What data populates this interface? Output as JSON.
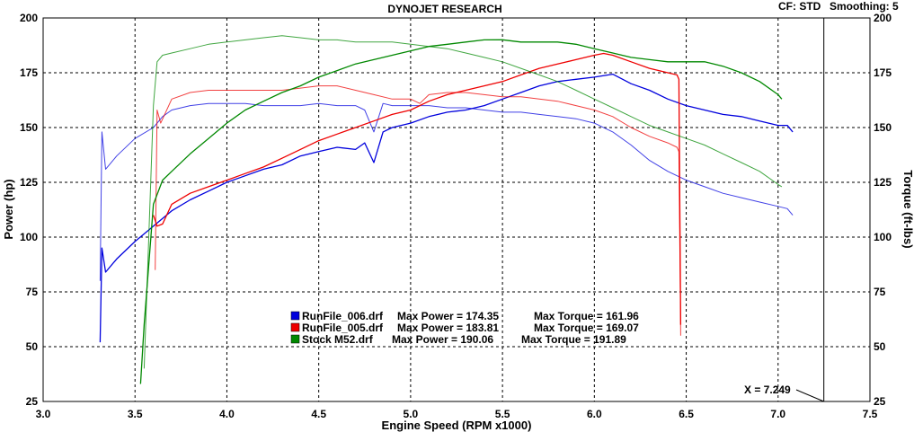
{
  "header": {
    "title": "DYNOJET RESEARCH",
    "cf_label": "CF: STD",
    "smoothing_label": "Smoothing: 5"
  },
  "cursor": {
    "label": "X = 7.249",
    "x": 7.249
  },
  "chart_data": {
    "type": "line",
    "title": "DYNOJET RESEARCH",
    "xlabel": "Engine Speed (RPM x1000)",
    "ylabel": "Power (hp)",
    "y2label": "Torque (ft-lbs)",
    "xlim": [
      3.0,
      7.5
    ],
    "ylim": [
      25,
      200
    ],
    "y2lim": [
      25,
      200
    ],
    "x_ticks": [
      "3.0",
      "3.5",
      "4.0",
      "4.5",
      "5.0",
      "5.5",
      "6.0",
      "6.5",
      "7.0",
      "7.5"
    ],
    "y_ticks": [
      "25",
      "50",
      "75",
      "100",
      "125",
      "150",
      "175",
      "200"
    ],
    "grid": true,
    "legend_position": "bottom-center",
    "series": [
      {
        "name": "RunFile_006.drf",
        "color": "#0000dd",
        "max_power_text": "Max Power = 174.35",
        "max_torque_text": "Max Torque = 161.96",
        "power": [
          [
            3.31,
            52
          ],
          [
            3.32,
            95
          ],
          [
            3.34,
            84
          ],
          [
            3.4,
            90
          ],
          [
            3.5,
            98
          ],
          [
            3.6,
            105
          ],
          [
            3.7,
            112
          ],
          [
            3.8,
            117
          ],
          [
            3.9,
            121
          ],
          [
            4.0,
            125
          ],
          [
            4.1,
            128
          ],
          [
            4.2,
            131
          ],
          [
            4.3,
            133
          ],
          [
            4.4,
            137
          ],
          [
            4.5,
            139
          ],
          [
            4.6,
            141
          ],
          [
            4.7,
            140
          ],
          [
            4.75,
            143
          ],
          [
            4.8,
            134
          ],
          [
            4.85,
            148
          ],
          [
            4.9,
            150
          ],
          [
            5.0,
            152
          ],
          [
            5.1,
            155
          ],
          [
            5.2,
            157
          ],
          [
            5.3,
            158
          ],
          [
            5.4,
            160
          ],
          [
            5.5,
            163
          ],
          [
            5.6,
            166
          ],
          [
            5.7,
            169
          ],
          [
            5.8,
            171
          ],
          [
            5.9,
            172
          ],
          [
            6.0,
            173
          ],
          [
            6.1,
            174.35
          ],
          [
            6.2,
            170
          ],
          [
            6.3,
            167
          ],
          [
            6.4,
            163
          ],
          [
            6.5,
            160
          ],
          [
            6.6,
            158
          ],
          [
            6.7,
            156
          ],
          [
            6.8,
            155
          ],
          [
            6.9,
            153
          ],
          [
            7.0,
            151
          ],
          [
            7.05,
            151
          ],
          [
            7.08,
            148
          ]
        ],
        "torque": [
          [
            3.31,
            80
          ],
          [
            3.32,
            148
          ],
          [
            3.34,
            131
          ],
          [
            3.4,
            137
          ],
          [
            3.5,
            145
          ],
          [
            3.6,
            150
          ],
          [
            3.65,
            155
          ],
          [
            3.7,
            158
          ],
          [
            3.8,
            160
          ],
          [
            3.9,
            161
          ],
          [
            4.0,
            161
          ],
          [
            4.1,
            161
          ],
          [
            4.2,
            160
          ],
          [
            4.3,
            160
          ],
          [
            4.4,
            160
          ],
          [
            4.5,
            161
          ],
          [
            4.6,
            160
          ],
          [
            4.7,
            160
          ],
          [
            4.75,
            158
          ],
          [
            4.8,
            148
          ],
          [
            4.85,
            161
          ],
          [
            4.9,
            160
          ],
          [
            5.0,
            160
          ],
          [
            5.1,
            160
          ],
          [
            5.2,
            159
          ],
          [
            5.3,
            159
          ],
          [
            5.4,
            158
          ],
          [
            5.5,
            157
          ],
          [
            5.6,
            157
          ],
          [
            5.7,
            156
          ],
          [
            5.8,
            155
          ],
          [
            5.9,
            154
          ],
          [
            6.0,
            152
          ],
          [
            6.1,
            148
          ],
          [
            6.2,
            142
          ],
          [
            6.3,
            135
          ],
          [
            6.4,
            130
          ],
          [
            6.5,
            126
          ],
          [
            6.6,
            123
          ],
          [
            6.7,
            120
          ],
          [
            6.8,
            118
          ],
          [
            6.9,
            116
          ],
          [
            7.0,
            114
          ],
          [
            7.05,
            113
          ],
          [
            7.08,
            110
          ]
        ]
      },
      {
        "name": "RunFile_005.drf",
        "color": "#ee0000",
        "max_power_text": "Max Power = 183.81",
        "max_torque_text": "Max Torque = 169.07",
        "power": [
          [
            3.6,
            110
          ],
          [
            3.62,
            105
          ],
          [
            3.65,
            106
          ],
          [
            3.7,
            115
          ],
          [
            3.8,
            120
          ],
          [
            3.9,
            123
          ],
          [
            4.0,
            126
          ],
          [
            4.1,
            129
          ],
          [
            4.2,
            132
          ],
          [
            4.3,
            136
          ],
          [
            4.4,
            140
          ],
          [
            4.5,
            144
          ],
          [
            4.6,
            147
          ],
          [
            4.7,
            150
          ],
          [
            4.8,
            153
          ],
          [
            4.9,
            156
          ],
          [
            5.0,
            158
          ],
          [
            5.1,
            162
          ],
          [
            5.2,
            165
          ],
          [
            5.3,
            167
          ],
          [
            5.4,
            169
          ],
          [
            5.5,
            171
          ],
          [
            5.6,
            174
          ],
          [
            5.7,
            177
          ],
          [
            5.8,
            179
          ],
          [
            5.9,
            181
          ],
          [
            6.0,
            183
          ],
          [
            6.05,
            183.81
          ],
          [
            6.1,
            183
          ],
          [
            6.2,
            180
          ],
          [
            6.3,
            177
          ],
          [
            6.4,
            175
          ],
          [
            6.45,
            174
          ],
          [
            6.46,
            172
          ],
          [
            6.47,
            60
          ]
        ],
        "torque": [
          [
            3.61,
            85
          ],
          [
            3.62,
            158
          ],
          [
            3.64,
            152
          ],
          [
            3.7,
            163
          ],
          [
            3.8,
            166
          ],
          [
            3.9,
            167
          ],
          [
            4.0,
            167
          ],
          [
            4.1,
            167
          ],
          [
            4.2,
            167
          ],
          [
            4.3,
            167
          ],
          [
            4.4,
            168
          ],
          [
            4.5,
            169
          ],
          [
            4.6,
            169
          ],
          [
            4.7,
            167
          ],
          [
            4.8,
            165
          ],
          [
            4.9,
            163
          ],
          [
            5.0,
            163
          ],
          [
            5.05,
            161
          ],
          [
            5.1,
            165
          ],
          [
            5.2,
            166
          ],
          [
            5.3,
            166
          ],
          [
            5.4,
            165
          ],
          [
            5.5,
            164
          ],
          [
            5.6,
            164
          ],
          [
            5.7,
            163
          ],
          [
            5.8,
            162
          ],
          [
            5.9,
            160
          ],
          [
            6.0,
            158
          ],
          [
            6.1,
            155
          ],
          [
            6.2,
            150
          ],
          [
            6.3,
            146
          ],
          [
            6.4,
            143
          ],
          [
            6.45,
            141
          ],
          [
            6.46,
            139
          ],
          [
            6.47,
            55
          ]
        ]
      },
      {
        "name": "Stock M52.drf",
        "color": "#008800",
        "max_power_text": "Max Power = 190.06",
        "max_torque_text": "Max Torque = 191.89",
        "power": [
          [
            3.53,
            33
          ],
          [
            3.55,
            60
          ],
          [
            3.6,
            115
          ],
          [
            3.65,
            126
          ],
          [
            3.7,
            130
          ],
          [
            3.8,
            138
          ],
          [
            3.9,
            145
          ],
          [
            4.0,
            152
          ],
          [
            4.1,
            158
          ],
          [
            4.2,
            162
          ],
          [
            4.3,
            166
          ],
          [
            4.4,
            169
          ],
          [
            4.5,
            173
          ],
          [
            4.6,
            176
          ],
          [
            4.7,
            179
          ],
          [
            4.8,
            181
          ],
          [
            4.9,
            183
          ],
          [
            5.0,
            185
          ],
          [
            5.1,
            187
          ],
          [
            5.2,
            188
          ],
          [
            5.3,
            189
          ],
          [
            5.4,
            190
          ],
          [
            5.5,
            190.06
          ],
          [
            5.6,
            189
          ],
          [
            5.7,
            189
          ],
          [
            5.8,
            189
          ],
          [
            5.9,
            188
          ],
          [
            6.0,
            186
          ],
          [
            6.1,
            184
          ],
          [
            6.2,
            182
          ],
          [
            6.3,
            181
          ],
          [
            6.4,
            180
          ],
          [
            6.5,
            180
          ],
          [
            6.6,
            180
          ],
          [
            6.7,
            178
          ],
          [
            6.8,
            175
          ],
          [
            6.9,
            171
          ],
          [
            7.0,
            165
          ],
          [
            7.02,
            163
          ]
        ],
        "torque": [
          [
            3.55,
            40
          ],
          [
            3.6,
            160
          ],
          [
            3.62,
            180
          ],
          [
            3.65,
            183
          ],
          [
            3.7,
            184
          ],
          [
            3.8,
            186
          ],
          [
            3.9,
            188
          ],
          [
            4.0,
            189
          ],
          [
            4.1,
            190
          ],
          [
            4.2,
            191
          ],
          [
            4.3,
            191.89
          ],
          [
            4.4,
            191
          ],
          [
            4.5,
            190
          ],
          [
            4.6,
            190
          ],
          [
            4.7,
            189
          ],
          [
            4.8,
            189
          ],
          [
            4.9,
            189
          ],
          [
            5.0,
            188
          ],
          [
            5.1,
            187
          ],
          [
            5.2,
            186
          ],
          [
            5.3,
            184
          ],
          [
            5.4,
            182
          ],
          [
            5.5,
            180
          ],
          [
            5.6,
            177
          ],
          [
            5.7,
            174
          ],
          [
            5.8,
            171
          ],
          [
            5.9,
            167
          ],
          [
            6.0,
            163
          ],
          [
            6.1,
            159
          ],
          [
            6.2,
            155
          ],
          [
            6.3,
            151
          ],
          [
            6.4,
            148
          ],
          [
            6.5,
            145
          ],
          [
            6.6,
            142
          ],
          [
            6.7,
            138
          ],
          [
            6.8,
            134
          ],
          [
            6.9,
            130
          ],
          [
            7.0,
            124
          ],
          [
            7.02,
            123
          ]
        ]
      }
    ]
  }
}
